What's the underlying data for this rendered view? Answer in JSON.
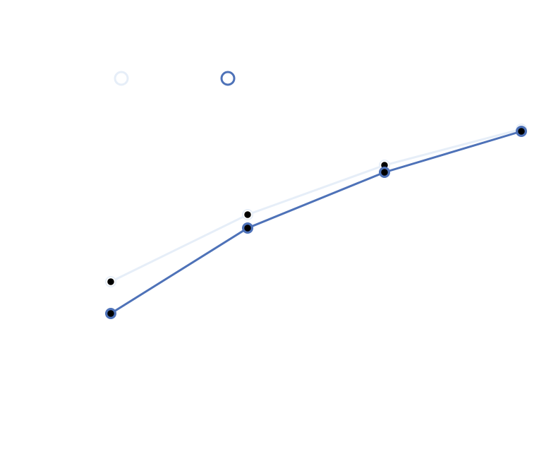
{
  "chart_data": {
    "type": "line",
    "categories": [
      null,
      null,
      null,
      null
    ],
    "series": [
      {
        "color": "#e6eef8",
        "values": [
          40.2,
          59.2,
          73.2,
          83.4
        ]
      },
      {
        "color": "#4e72b8",
        "values": [
          31.2,
          55.4,
          71.2,
          82.8
        ]
      }
    ],
    "ylim": [
      0,
      100
    ]
  }
}
